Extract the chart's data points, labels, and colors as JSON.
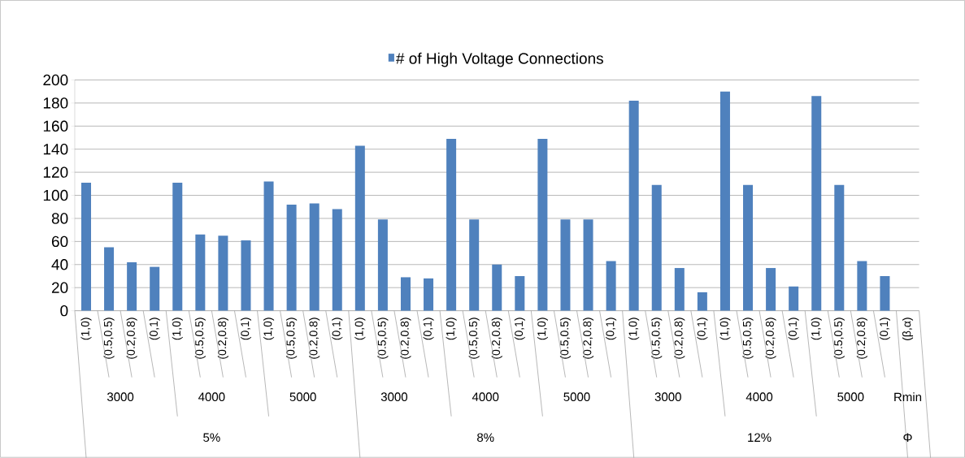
{
  "chart_data": {
    "type": "bar",
    "categories": [
      "(1,0)",
      "(0.5,0.5)",
      "(0.2,0.8)",
      "(0,1)",
      "(1,0)",
      "(0.5,0.5)",
      "(0.2,0.8)",
      "(0,1)",
      "(1,0)",
      "(0.5,0.5)",
      "(0.2,0.8)",
      "(0,1)",
      "(1,0)",
      "(0.5,0.5)",
      "(0.2,0.8)",
      "(0,1)",
      "(1,0)",
      "(0.5,0.5)",
      "(0.2,0.8)",
      "(0,1)",
      "(1,0)",
      "(0.5,0.5)",
      "(0.2,0.8)",
      "(0,1)",
      "(1,0)",
      "(0.5,0.5)",
      "(0.2,0.8)",
      "(0,1)",
      "(1,0)",
      "(0.5,0.5)",
      "(0.2,0.8)",
      "(0,1)",
      "(1,0)",
      "(0.5,0.5)",
      "(0.2,0.8)",
      "(0,1)",
      "(β,α)"
    ],
    "series": [
      {
        "name": "# of High Voltage Connections",
        "color": "#4f81bd",
        "values": [
          111,
          55,
          42,
          38,
          111,
          66,
          65,
          61,
          112,
          92,
          93,
          88,
          143,
          79,
          29,
          28,
          149,
          79,
          40,
          30,
          149,
          79,
          79,
          43,
          182,
          109,
          37,
          16,
          190,
          109,
          37,
          21,
          186,
          109,
          43,
          30,
          null
        ]
      }
    ],
    "ylim": [
      0,
      200
    ],
    "yticks": [
      0,
      20,
      40,
      60,
      80,
      100,
      120,
      140,
      160,
      180,
      200
    ],
    "grid": "y",
    "legend": "top",
    "annotations": [
      "3000",
      "4000",
      "5000",
      "3000",
      "4000",
      "5000",
      "3000",
      "4000",
      "5000",
      "Rmin",
      "5%",
      "8%",
      "12%",
      "Φ"
    ]
  }
}
